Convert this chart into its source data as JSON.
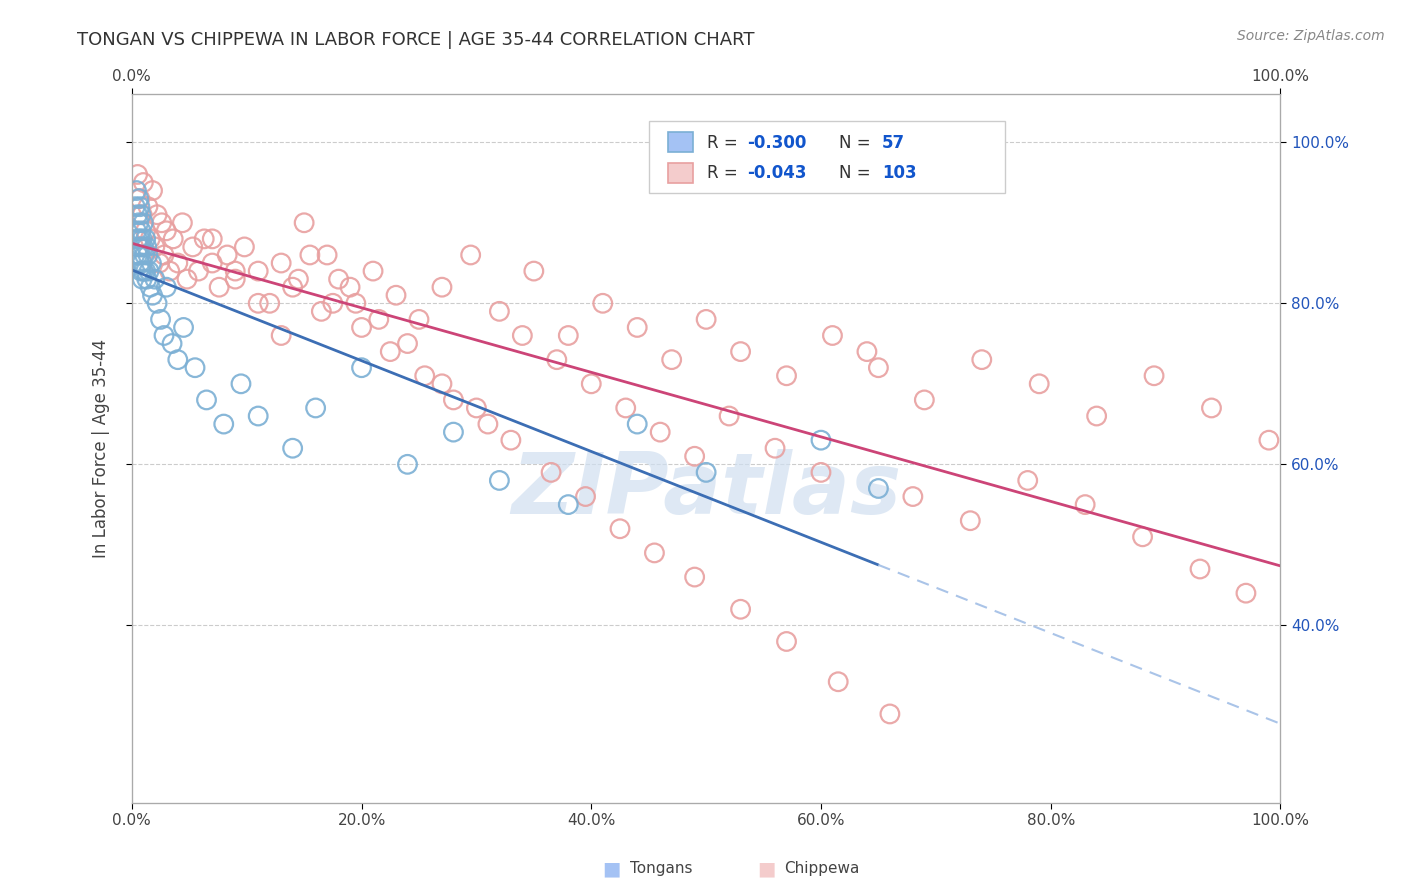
{
  "title": "TONGAN VS CHIPPEWA IN LABOR FORCE | AGE 35-44 CORRELATION CHART",
  "source": "Source: ZipAtlas.com",
  "ylabel": "In Labor Force | Age 35-44",
  "xlim": [
    0.0,
    1.0
  ],
  "ylim": [
    0.18,
    1.06
  ],
  "ytick_vals": [
    0.4,
    0.6,
    0.8,
    1.0
  ],
  "xtick_vals": [
    0.0,
    0.2,
    0.4,
    0.6,
    0.8,
    1.0
  ],
  "xtick_labels_bottom": [
    "0.0%",
    "20.0%",
    "40.0%",
    "60.0%",
    "80.0%",
    "100.0%"
  ],
  "ytick_labels_right": [
    "40.0%",
    "60.0%",
    "80.0%",
    "100.0%"
  ],
  "tongan_edge_color": "#7bafd4",
  "chippewa_edge_color": "#e8a0a0",
  "tongan_line_color": "#3c6eb4",
  "chippewa_line_color": "#cc4477",
  "dashed_line_color": "#aac4e8",
  "background_color": "#ffffff",
  "grid_color": "#cccccc",
  "legend_R1": "-0.300",
  "legend_N1": "57",
  "legend_R2": "-0.043",
  "legend_N2": "103",
  "legend_color_blue": "#1155cc",
  "legend_text_color": "#333333",
  "legend_swatch_blue": "#a4c2f4",
  "legend_swatch_blue_edge": "#7bafd4",
  "legend_swatch_pink": "#f4cccc",
  "legend_swatch_pink_edge": "#e8a0a0",
  "watermark_color": "#d0dff0",
  "tongan_x": [
    0.003,
    0.004,
    0.004,
    0.005,
    0.005,
    0.005,
    0.006,
    0.006,
    0.006,
    0.007,
    0.007,
    0.007,
    0.007,
    0.008,
    0.008,
    0.008,
    0.008,
    0.009,
    0.009,
    0.009,
    0.01,
    0.01,
    0.01,
    0.011,
    0.012,
    0.012,
    0.013,
    0.013,
    0.014,
    0.015,
    0.016,
    0.017,
    0.018,
    0.02,
    0.022,
    0.025,
    0.028,
    0.03,
    0.035,
    0.04,
    0.045,
    0.055,
    0.065,
    0.08,
    0.095,
    0.11,
    0.14,
    0.16,
    0.2,
    0.24,
    0.28,
    0.32,
    0.38,
    0.44,
    0.5,
    0.6,
    0.65
  ],
  "tongan_y": [
    0.92,
    0.89,
    0.94,
    0.88,
    0.91,
    0.86,
    0.93,
    0.87,
    0.9,
    0.85,
    0.88,
    0.92,
    0.86,
    0.84,
    0.89,
    0.87,
    0.91,
    0.85,
    0.88,
    0.83,
    0.87,
    0.84,
    0.9,
    0.86,
    0.88,
    0.84,
    0.87,
    0.83,
    0.86,
    0.84,
    0.82,
    0.85,
    0.81,
    0.83,
    0.8,
    0.78,
    0.76,
    0.82,
    0.75,
    0.73,
    0.77,
    0.72,
    0.68,
    0.65,
    0.7,
    0.66,
    0.62,
    0.67,
    0.72,
    0.6,
    0.64,
    0.58,
    0.55,
    0.65,
    0.59,
    0.63,
    0.57
  ],
  "chippewa_x": [
    0.005,
    0.007,
    0.009,
    0.01,
    0.012,
    0.014,
    0.016,
    0.018,
    0.02,
    0.022,
    0.024,
    0.026,
    0.028,
    0.03,
    0.033,
    0.036,
    0.04,
    0.044,
    0.048,
    0.053,
    0.058,
    0.063,
    0.07,
    0.076,
    0.083,
    0.09,
    0.098,
    0.11,
    0.12,
    0.13,
    0.14,
    0.155,
    0.165,
    0.18,
    0.195,
    0.21,
    0.23,
    0.25,
    0.27,
    0.295,
    0.32,
    0.35,
    0.38,
    0.41,
    0.44,
    0.47,
    0.5,
    0.53,
    0.57,
    0.61,
    0.65,
    0.69,
    0.74,
    0.79,
    0.84,
    0.89,
    0.94,
    0.99,
    0.145,
    0.175,
    0.2,
    0.225,
    0.255,
    0.28,
    0.31,
    0.34,
    0.37,
    0.4,
    0.43,
    0.46,
    0.49,
    0.52,
    0.56,
    0.6,
    0.64,
    0.68,
    0.73,
    0.78,
    0.83,
    0.88,
    0.93,
    0.97,
    0.07,
    0.09,
    0.11,
    0.13,
    0.15,
    0.17,
    0.19,
    0.215,
    0.24,
    0.27,
    0.3,
    0.33,
    0.365,
    0.395,
    0.425,
    0.455,
    0.49,
    0.53,
    0.57,
    0.615,
    0.66
  ],
  "chippewa_y": [
    0.96,
    0.93,
    0.91,
    0.95,
    0.89,
    0.92,
    0.88,
    0.94,
    0.87,
    0.91,
    0.85,
    0.9,
    0.86,
    0.89,
    0.84,
    0.88,
    0.85,
    0.9,
    0.83,
    0.87,
    0.84,
    0.88,
    0.85,
    0.82,
    0.86,
    0.83,
    0.87,
    0.84,
    0.8,
    0.85,
    0.82,
    0.86,
    0.79,
    0.83,
    0.8,
    0.84,
    0.81,
    0.78,
    0.82,
    0.86,
    0.79,
    0.84,
    0.76,
    0.8,
    0.77,
    0.73,
    0.78,
    0.74,
    0.71,
    0.76,
    0.72,
    0.68,
    0.73,
    0.7,
    0.66,
    0.71,
    0.67,
    0.63,
    0.83,
    0.8,
    0.77,
    0.74,
    0.71,
    0.68,
    0.65,
    0.76,
    0.73,
    0.7,
    0.67,
    0.64,
    0.61,
    0.66,
    0.62,
    0.59,
    0.74,
    0.56,
    0.53,
    0.58,
    0.55,
    0.51,
    0.47,
    0.44,
    0.88,
    0.84,
    0.8,
    0.76,
    0.9,
    0.86,
    0.82,
    0.78,
    0.75,
    0.7,
    0.67,
    0.63,
    0.59,
    0.56,
    0.52,
    0.49,
    0.46,
    0.42,
    0.38,
    0.33,
    0.29
  ]
}
